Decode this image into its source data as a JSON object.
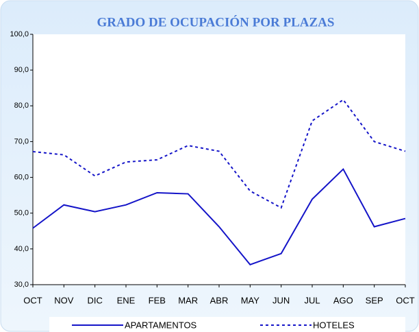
{
  "chart_data": {
    "type": "line",
    "title": "GRADO DE OCUPACIÓN POR PLAZAS",
    "categories": [
      "OCT",
      "NOV",
      "DIC",
      "ENE",
      "FEB",
      "MAR",
      "ABR",
      "MAY",
      "JUN",
      "JUL",
      "AGO",
      "SEP",
      "OCT"
    ],
    "series": [
      {
        "name": "APARTAMENTOS",
        "color": "#1414c8",
        "dash": "solid",
        "values": [
          45.8,
          52.3,
          50.4,
          52.3,
          55.7,
          55.4,
          46.2,
          35.6,
          38.7,
          53.9,
          62.3,
          46.2,
          48.5
        ]
      },
      {
        "name": "HOTELES",
        "color": "#1414c8",
        "dash": "dashed",
        "values": [
          67.2,
          66.3,
          60.4,
          64.3,
          64.9,
          68.9,
          67.3,
          56.2,
          51.5,
          75.8,
          81.7,
          70.0,
          67.3
        ]
      }
    ],
    "ylim": [
      30,
      100
    ],
    "yticks": [
      {
        "value": 30,
        "label": "30,0"
      },
      {
        "value": 40,
        "label": "40,0"
      },
      {
        "value": 50,
        "label": "50,0"
      },
      {
        "value": 60,
        "label": "60,0"
      },
      {
        "value": 70,
        "label": "70,0"
      },
      {
        "value": 80,
        "label": "80,0"
      },
      {
        "value": 90,
        "label": "90,0"
      },
      {
        "value": 100,
        "label": "100,0"
      }
    ],
    "grid": false,
    "legend": "bottom"
  }
}
